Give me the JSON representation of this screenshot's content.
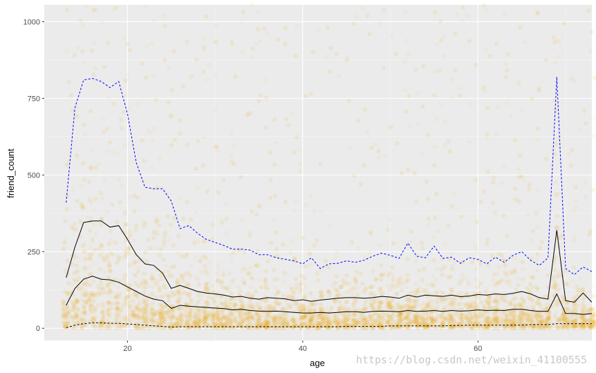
{
  "chart_data": {
    "type": "scatter",
    "xlabel": "age",
    "ylabel": "friend_count",
    "xlim": [
      10.5,
      73
    ],
    "ylim": [
      -40,
      1055
    ],
    "x_ticks": [
      20,
      40,
      60
    ],
    "y_ticks": [
      0,
      250,
      500,
      750,
      1000
    ],
    "grid": true,
    "point_color": "#F5A915",
    "point_alpha": "low",
    "summary_lines": [
      {
        "name": "",
        "style": "dashed",
        "color": "#0000FF",
        "x": [
          13,
          14,
          15,
          16,
          17,
          18,
          19,
          20,
          21,
          22,
          23,
          24,
          25,
          26,
          27,
          28,
          29,
          30,
          31,
          32,
          33,
          34,
          35,
          36,
          37,
          38,
          39,
          40,
          41,
          42,
          43,
          44,
          45,
          46,
          47,
          48,
          49,
          50,
          51,
          52,
          53,
          54,
          55,
          56,
          57,
          58,
          59,
          60,
          61,
          62,
          63,
          64,
          65,
          66,
          67,
          68,
          69,
          70,
          71,
          72,
          73
        ],
        "y": [
          410,
          720,
          810,
          815,
          805,
          785,
          805,
          700,
          540,
          460,
          455,
          455,
          415,
          325,
          335,
          310,
          290,
          280,
          270,
          258,
          258,
          255,
          240,
          240,
          230,
          225,
          220,
          210,
          230,
          195,
          210,
          212,
          220,
          215,
          222,
          235,
          245,
          238,
          228,
          278,
          235,
          230,
          268,
          228,
          232,
          212,
          230,
          225,
          210,
          232,
          215,
          238,
          250,
          222,
          205,
          230,
          820,
          195,
          175,
          200,
          185
        ]
      },
      {
        "name": "",
        "style": "solid",
        "color": "#000000",
        "x": [
          13,
          14,
          15,
          16,
          17,
          18,
          19,
          20,
          21,
          22,
          23,
          24,
          25,
          26,
          27,
          28,
          29,
          30,
          31,
          32,
          33,
          34,
          35,
          36,
          37,
          38,
          39,
          40,
          41,
          42,
          43,
          44,
          45,
          46,
          47,
          48,
          49,
          50,
          51,
          52,
          53,
          54,
          55,
          56,
          57,
          58,
          59,
          60,
          61,
          62,
          63,
          64,
          65,
          66,
          67,
          68,
          69,
          70,
          71,
          72,
          73
        ],
        "y": [
          165,
          265,
          345,
          350,
          350,
          330,
          335,
          290,
          240,
          210,
          205,
          180,
          130,
          140,
          130,
          120,
          115,
          112,
          108,
          102,
          104,
          98,
          95,
          100,
          98,
          96,
          90,
          93,
          88,
          92,
          95,
          98,
          100,
          100,
          98,
          100,
          104,
          102,
          98,
          108,
          102,
          108,
          106,
          104,
          108,
          103,
          105,
          110,
          108,
          112,
          110,
          114,
          120,
          112,
          100,
          95,
          320,
          90,
          85,
          115,
          85
        ]
      },
      {
        "name": "",
        "style": "solid",
        "color": "#000000",
        "x": [
          13,
          14,
          15,
          16,
          17,
          18,
          19,
          20,
          21,
          22,
          23,
          24,
          25,
          26,
          27,
          28,
          29,
          30,
          31,
          32,
          33,
          34,
          35,
          36,
          37,
          38,
          39,
          40,
          41,
          42,
          43,
          44,
          45,
          46,
          47,
          48,
          49,
          50,
          51,
          52,
          53,
          54,
          55,
          56,
          57,
          58,
          59,
          60,
          61,
          62,
          63,
          64,
          65,
          66,
          67,
          68,
          69,
          70,
          71,
          72,
          73
        ],
        "y": [
          75,
          130,
          160,
          170,
          160,
          158,
          150,
          135,
          120,
          105,
          95,
          90,
          65,
          75,
          72,
          70,
          68,
          66,
          64,
          60,
          62,
          58,
          56,
          55,
          56,
          54,
          52,
          50,
          50,
          52,
          50,
          52,
          54,
          54,
          52,
          55,
          56,
          55,
          54,
          58,
          55,
          56,
          58,
          55,
          58,
          56,
          57,
          60,
          58,
          59,
          58,
          62,
          62,
          58,
          55,
          55,
          112,
          48,
          48,
          45,
          48
        ]
      },
      {
        "name": "",
        "style": "dashed",
        "color": "#000000",
        "x": [
          13,
          14,
          15,
          16,
          17,
          18,
          19,
          20,
          21,
          22,
          23,
          24,
          25,
          26,
          27,
          28,
          29,
          30,
          31,
          32,
          33,
          34,
          35,
          36,
          37,
          38,
          39,
          40,
          41,
          42,
          43,
          44,
          45,
          46,
          47,
          48,
          49,
          50,
          51,
          52,
          53,
          54,
          55,
          56,
          57,
          58,
          59,
          60,
          61,
          62,
          63,
          64,
          65,
          66,
          67,
          68,
          69,
          70,
          71,
          72,
          73
        ],
        "y": [
          2,
          10,
          15,
          18,
          18,
          16,
          16,
          14,
          12,
          10,
          8,
          6,
          4,
          5,
          5,
          5,
          5,
          5,
          5,
          5,
          5,
          5,
          5,
          5,
          5,
          5,
          5,
          5,
          5,
          5,
          5,
          5,
          6,
          6,
          6,
          6,
          6,
          8,
          8,
          8,
          8,
          8,
          8,
          8,
          9,
          9,
          10,
          10,
          10,
          10,
          10,
          10,
          10,
          12,
          12,
          12,
          15,
          15,
          15,
          15,
          15
        ]
      }
    ]
  },
  "watermark": "https://blog.csdn.net/weixin_41100555"
}
